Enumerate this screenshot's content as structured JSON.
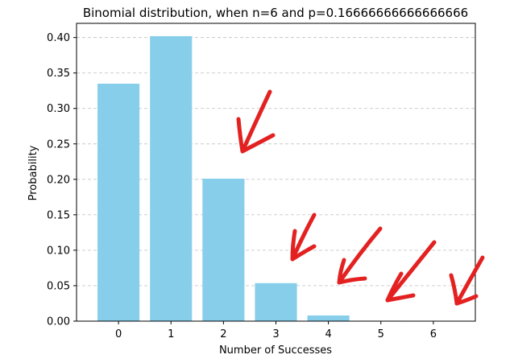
{
  "chart_data": {
    "type": "bar",
    "title": "Binomial distribution, when n=6 and p=0.16666666666666666",
    "xlabel": "Number of Successes",
    "ylabel": "Probability",
    "categories": [
      "0",
      "1",
      "2",
      "3",
      "4",
      "5",
      "6"
    ],
    "values": [
      0.3349,
      0.4019,
      0.2009,
      0.0536,
      0.008,
      0.0006,
      2e-05
    ],
    "ylim": [
      0,
      0.42
    ],
    "yticks": [
      "0.00",
      "0.05",
      "0.10",
      "0.15",
      "0.20",
      "0.25",
      "0.30",
      "0.35",
      "0.40"
    ],
    "grid": "y-dashed",
    "bar_color": "#87CEEB",
    "annotation_color": "#E32121",
    "annotations": [
      {
        "type": "hand-drawn-arrow",
        "points_to": "2"
      },
      {
        "type": "hand-drawn-arrow",
        "points_to": "3"
      },
      {
        "type": "hand-drawn-arrow",
        "points_to": "4"
      },
      {
        "type": "hand-drawn-arrow",
        "points_to": "5"
      },
      {
        "type": "hand-drawn-arrow",
        "points_to": "6"
      }
    ]
  }
}
